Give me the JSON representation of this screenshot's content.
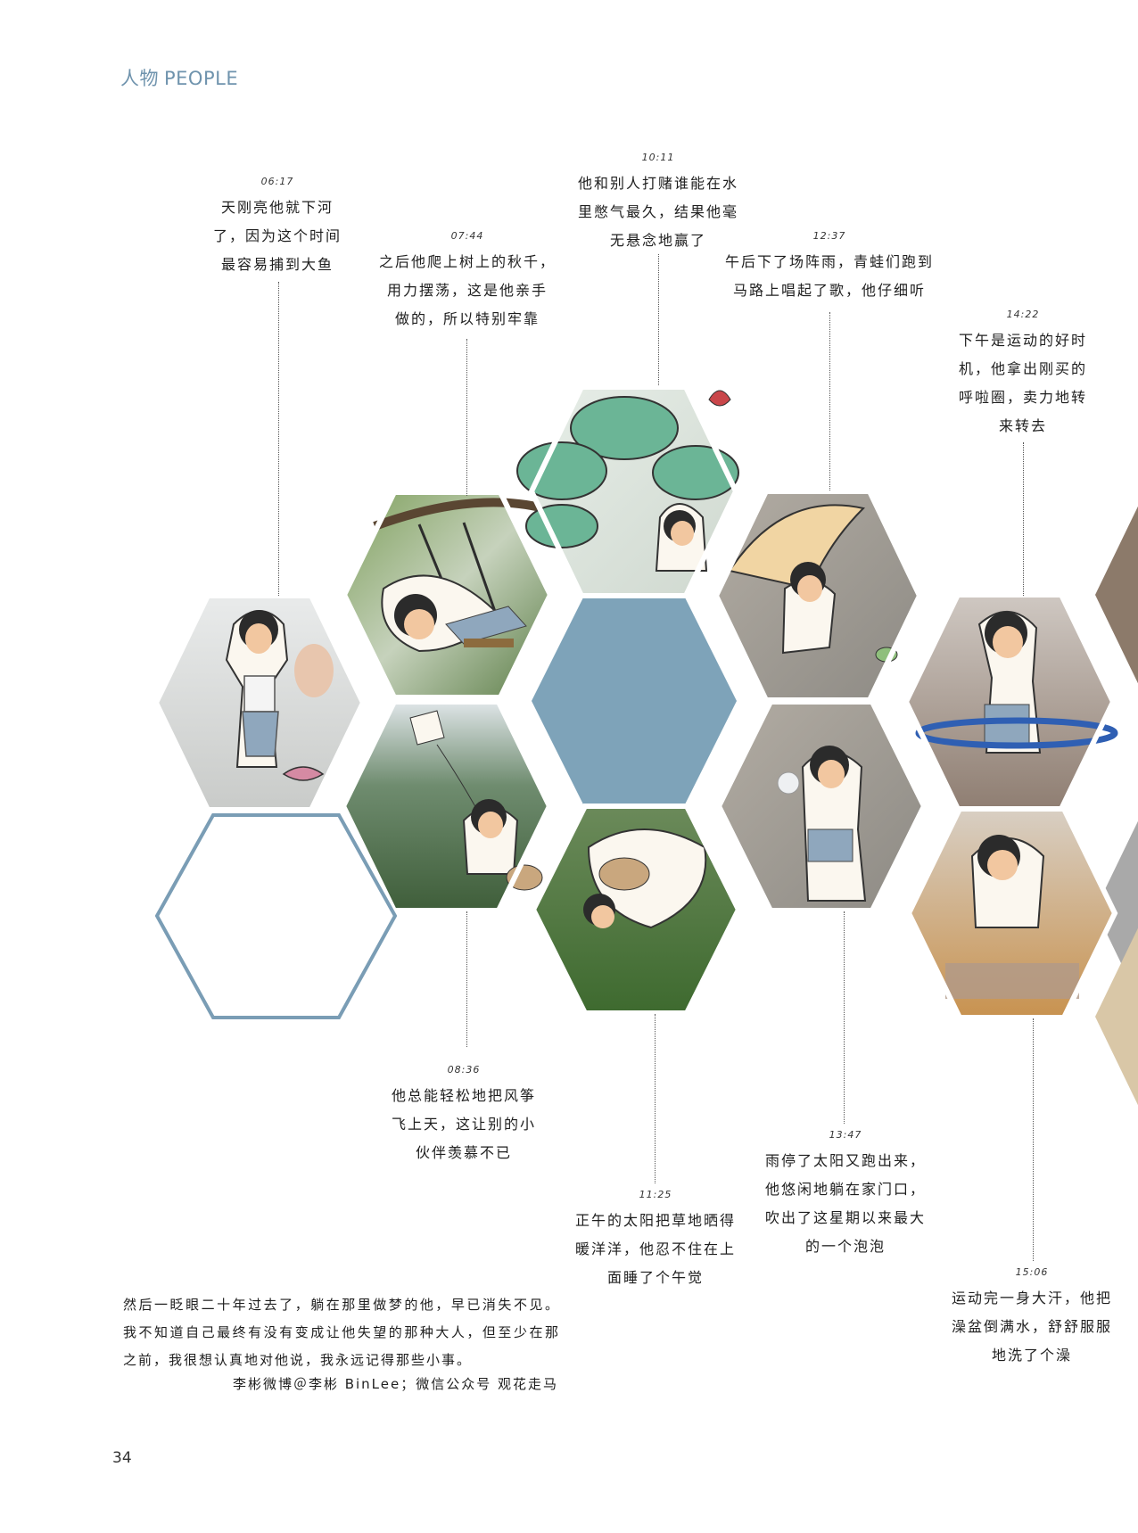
{
  "header": {
    "cn": "人物",
    "en": "PEOPLE"
  },
  "captions": [
    {
      "id": "c0617",
      "time": "06:17",
      "lines": [
        "天刚亮他就下河",
        "了，因为这个时间",
        "最容易捕到大鱼"
      ]
    },
    {
      "id": "c0744",
      "time": "07:44",
      "lines": [
        "之后他爬上树上的秋千，",
        "用力摆荡，这是他亲手",
        "做的，所以特别牢靠"
      ]
    },
    {
      "id": "c1011",
      "time": "10:11",
      "lines": [
        "他和别人打赌谁能在水",
        "里憋气最久，结果他毫",
        "无悬念地赢了"
      ]
    },
    {
      "id": "c1237",
      "time": "12:37",
      "lines": [
        "午后下了场阵雨，青蛙们跑到",
        "马路上唱起了歌，他仔细听"
      ]
    },
    {
      "id": "c1422",
      "time": "14:22",
      "lines": [
        "下午是运动的好时",
        "机，他拿出刚买的",
        "呼啦圈，卖力地转",
        "来转去"
      ]
    },
    {
      "id": "c0836",
      "time": "08:36",
      "lines": [
        "他总能轻松地把风筝",
        "飞上天，这让别的小",
        "伙伴羡慕不已"
      ]
    },
    {
      "id": "c1125",
      "time": "11:25",
      "lines": [
        "正午的太阳把草地晒得",
        "暖洋洋，他忍不住在上",
        "面睡了个午觉"
      ]
    },
    {
      "id": "c1347",
      "time": "13:47",
      "lines": [
        "雨停了太阳又跑出来，",
        "他悠闲地躺在家门口，",
        "吹出了这星期以来最大",
        "的一个泡泡"
      ]
    },
    {
      "id": "c1506",
      "time": "15:06",
      "lines": [
        "运动完一身大汗，他把",
        "澡盆倒满水，舒舒服服",
        "地洗了个澡"
      ]
    }
  ],
  "body": {
    "paragraph": "然后一眨眼二十年过去了，躺在那里做梦的他，早已消失不见。我不知道自己最终有没有变成让他失望的那种大人，但至少在那之前，我很想认真地对他说，我永远记得那些小事。",
    "credit": "李彬微博＠李彬 BinLee；微信公众号 观花走马"
  },
  "page_number": "34",
  "colors": {
    "accent_blue": "#7ea3b9",
    "hex_outline": "#7a9db5",
    "header_text": "#6f93ad"
  }
}
